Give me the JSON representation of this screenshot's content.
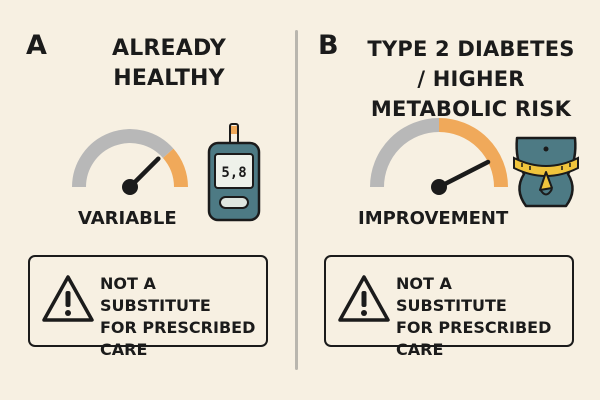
{
  "panels": [
    {
      "letter": "A",
      "title_line1": "ALREADY",
      "title_line2": "HEALTHY",
      "gauge_label": "VARIABLE",
      "gauge_level": 0.75,
      "meter_reading": "5,8",
      "warning_line1": "NOT A SUBSTITUTE",
      "warning_line2": "FOR PRESCRIBED",
      "warning_line3": "CARE"
    },
    {
      "letter": "B",
      "title_line1": "TYPE 2 DIABETES",
      "title_line2": "/ HIGHER",
      "title_line3": "METABOLIC RISK",
      "gauge_label": "IMPROVEMENT",
      "gauge_level": 0.85,
      "warning_line1": "NOT A SUBSTITUTE",
      "warning_line2": "FOR PRESCRIBED",
      "warning_line3": "CARE"
    }
  ],
  "colors": {
    "background": "#f7f0e2",
    "gauge_gray": "#b8b8b8",
    "gauge_orange": "#f0a95a",
    "meter_teal": "#4d7a84",
    "tape_yellow": "#f0c43c",
    "ink": "#1b1b1b"
  },
  "icons": [
    "speedometer-gauge-icon",
    "glucose-meter-icon",
    "waist-measuring-tape-icon",
    "warning-triangle-icon"
  ]
}
